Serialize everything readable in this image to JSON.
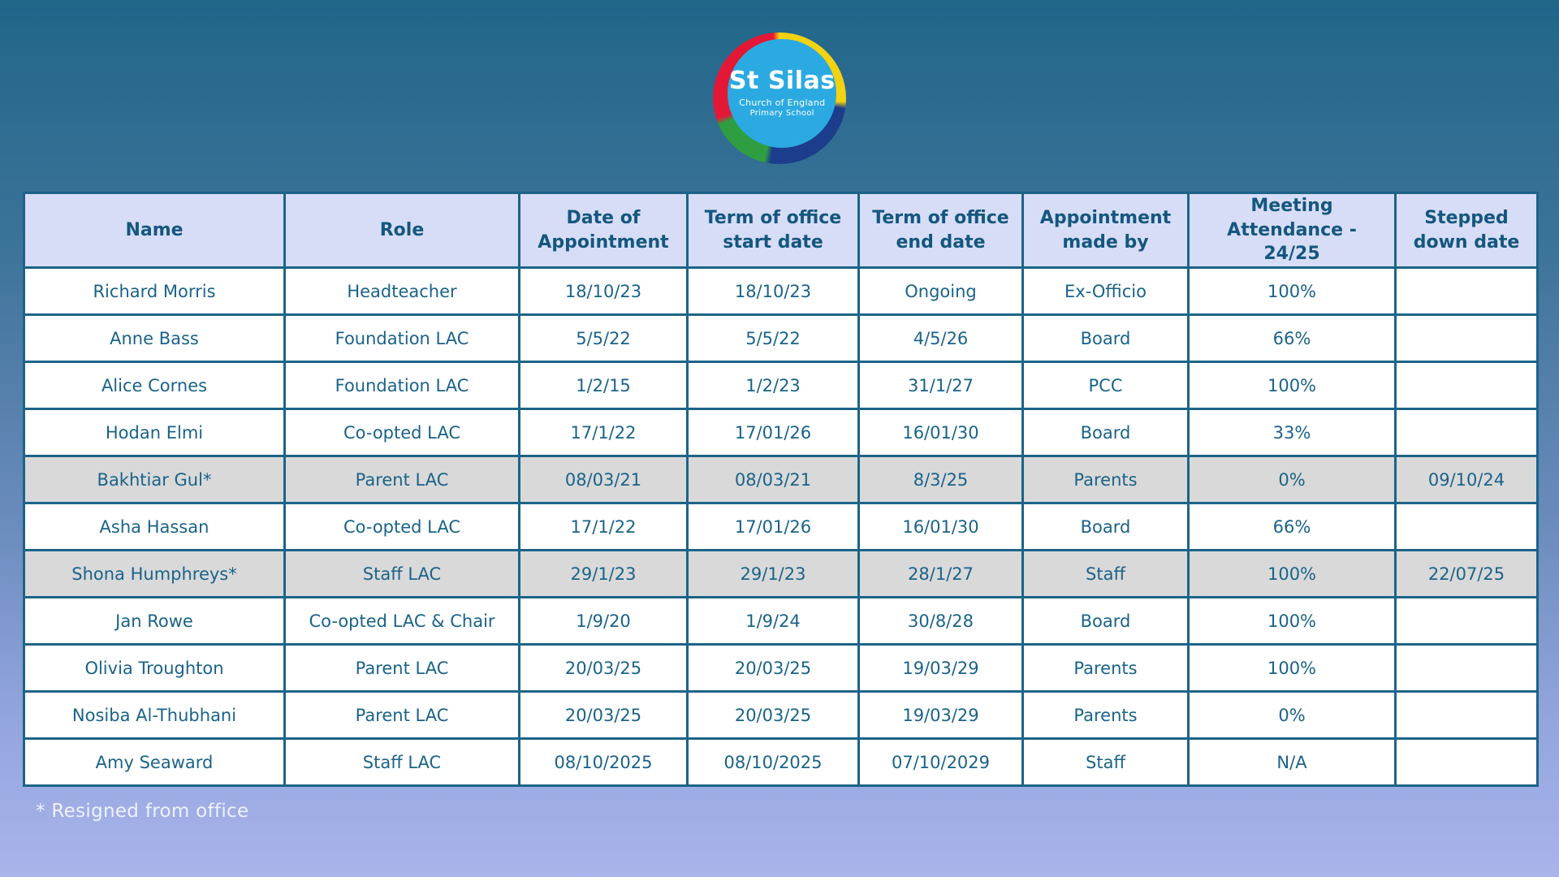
{
  "logo": {
    "title": "St Silas",
    "subtitle_line1": "Church of England",
    "subtitle_line2": "Primary School",
    "colors": {
      "inner_circle": "#2baae1",
      "ring_red": "#e31837",
      "ring_yellow": "#f3d211",
      "ring_navy": "#1b3d8c",
      "ring_green": "#2f9e41",
      "text": "#ffffff"
    }
  },
  "table": {
    "headers": [
      "Name",
      "Role",
      "Date of\nAppointment",
      "Term of office\nstart date",
      "Term of office\nend date",
      "Appointment\nmade by",
      "Meeting\nAttendance - 24/25",
      "Stepped\ndown date"
    ],
    "rows": [
      {
        "name": "Richard Morris",
        "role": "Headteacher",
        "date_of_appointment": "18/10/23",
        "term_start": "18/10/23",
        "term_end": "Ongoing",
        "appointed_by": "Ex-Officio",
        "attendance": "100%",
        "stepped_down": "",
        "highlighted": false
      },
      {
        "name": "Anne Bass",
        "role": "Foundation LAC",
        "date_of_appointment": "5/5/22",
        "term_start": "5/5/22",
        "term_end": "4/5/26",
        "appointed_by": "Board",
        "attendance": "66%",
        "stepped_down": "",
        "highlighted": false
      },
      {
        "name": "Alice Cornes",
        "role": "Foundation LAC",
        "date_of_appointment": "1/2/15",
        "term_start": "1/2/23",
        "term_end": "31/1/27",
        "appointed_by": "PCC",
        "attendance": "100%",
        "stepped_down": "",
        "highlighted": false
      },
      {
        "name": "Hodan Elmi",
        "role": "Co-opted LAC",
        "date_of_appointment": "17/1/22",
        "term_start": "17/01/26",
        "term_end": "16/01/30",
        "appointed_by": "Board",
        "attendance": "33%",
        "stepped_down": "",
        "highlighted": false
      },
      {
        "name": "Bakhtiar Gul*",
        "role": "Parent LAC",
        "date_of_appointment": "08/03/21",
        "term_start": "08/03/21",
        "term_end": "8/3/25",
        "appointed_by": "Parents",
        "attendance": "0%",
        "stepped_down": "09/10/24",
        "highlighted": true
      },
      {
        "name": "Asha Hassan",
        "role": "Co-opted LAC",
        "date_of_appointment": "17/1/22",
        "term_start": "17/01/26",
        "term_end": "16/01/30",
        "appointed_by": "Board",
        "attendance": "66%",
        "stepped_down": "",
        "highlighted": false
      },
      {
        "name": "Shona Humphreys*",
        "role": "Staff LAC",
        "date_of_appointment": "29/1/23",
        "term_start": "29/1/23",
        "term_end": "28/1/27",
        "appointed_by": "Staff",
        "attendance": "100%",
        "stepped_down": "22/07/25",
        "highlighted": true
      },
      {
        "name": "Jan Rowe",
        "role": "Co-opted LAC & Chair",
        "date_of_appointment": "1/9/20",
        "term_start": "1/9/24",
        "term_end": "30/8/28",
        "appointed_by": "Board",
        "attendance": "100%",
        "stepped_down": "",
        "highlighted": false
      },
      {
        "name": "Olivia Troughton",
        "role": "Parent LAC",
        "date_of_appointment": "20/03/25",
        "term_start": "20/03/25",
        "term_end": "19/03/29",
        "appointed_by": "Parents",
        "attendance": "100%",
        "stepped_down": "",
        "highlighted": false
      },
      {
        "name": "Nosiba Al-Thubhani",
        "role": "Parent LAC",
        "date_of_appointment": "20/03/25",
        "term_start": "20/03/25",
        "term_end": "19/03/29",
        "appointed_by": "Parents",
        "attendance": "0%",
        "stepped_down": "",
        "highlighted": false
      },
      {
        "name": "Amy Seaward",
        "role": "Staff LAC",
        "date_of_appointment": "08/10/2025",
        "term_start": "08/10/2025",
        "term_end": "07/10/2029",
        "appointed_by": "Staff",
        "attendance": "N/A",
        "stepped_down": "",
        "highlighted": false
      }
    ]
  },
  "footnote": "* Resigned from office",
  "colors": {
    "background_top": "#206689",
    "background_bottom": "#a9b4eb",
    "header_cell_bg": "#d7ddf6",
    "row_bg": "#ffffff",
    "highlighted_row_bg": "#d9d9d9",
    "table_border": "#1c6488",
    "header_text": "#14577f",
    "cell_text": "#1a6389",
    "footnote_text": "#eef1fd"
  }
}
